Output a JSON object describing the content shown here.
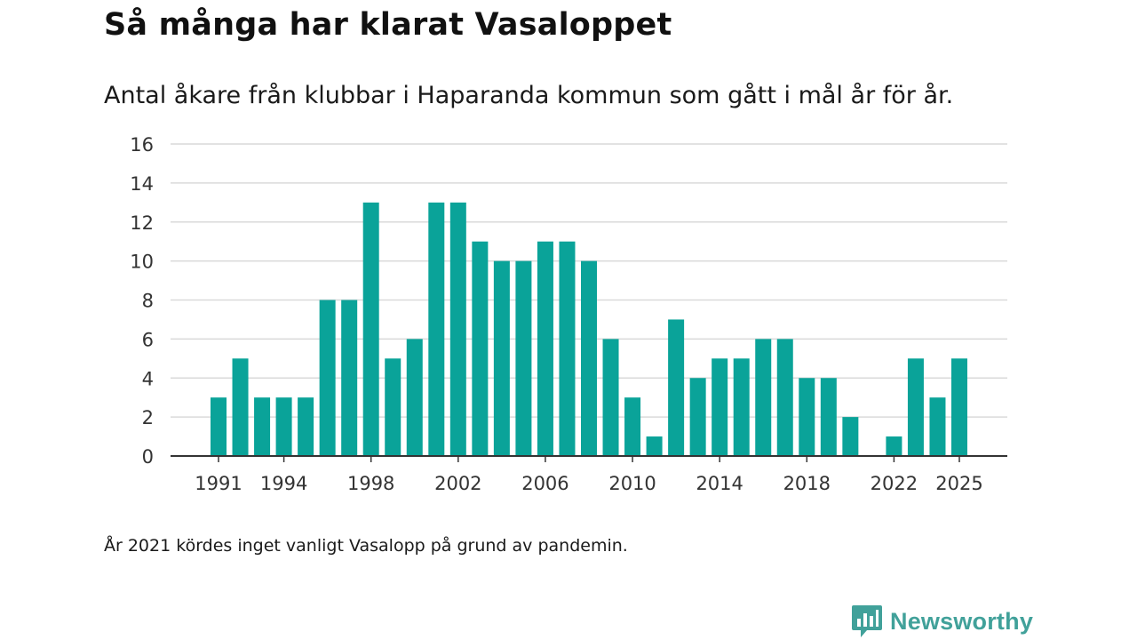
{
  "header": {
    "title": "Så många har klarat Vasaloppet",
    "subtitle": "Antal åkare från klubbar i Haparanda kommun som gått i mål år för år."
  },
  "footer": {
    "note": "År 2021 kördes inget vanligt Vasalopp på grund av pandemin.",
    "brand": "Newsworthy",
    "brand_icon": "newsworthy-logo-icon"
  },
  "colors": {
    "bar": "#0aa399",
    "grid": "#d9d9d9",
    "axis": "#333333",
    "brand": "#41a19a"
  },
  "chart_data": {
    "type": "bar",
    "title": "Så många har klarat Vasaloppet",
    "subtitle": "Antal åkare från klubbar i Haparanda kommun som gått i mål år för år.",
    "xlabel": "",
    "ylabel": "",
    "ylim": [
      0,
      16
    ],
    "yticks": [
      0,
      2,
      4,
      6,
      8,
      10,
      12,
      14,
      16
    ],
    "xticks": [
      1991,
      1994,
      1998,
      2002,
      2006,
      2010,
      2014,
      2018,
      2022,
      2025
    ],
    "grid": true,
    "categories": [
      1991,
      1992,
      1993,
      1994,
      1995,
      1996,
      1997,
      1998,
      1999,
      2000,
      2001,
      2002,
      2003,
      2004,
      2005,
      2006,
      2007,
      2008,
      2009,
      2010,
      2011,
      2012,
      2013,
      2014,
      2015,
      2016,
      2017,
      2018,
      2019,
      2020,
      2021,
      2022,
      2023,
      2024,
      2025
    ],
    "values": [
      3,
      5,
      3,
      3,
      3,
      8,
      8,
      13,
      5,
      6,
      13,
      13,
      11,
      10,
      10,
      11,
      11,
      10,
      6,
      3,
      1,
      7,
      4,
      5,
      5,
      6,
      6,
      4,
      4,
      2,
      0,
      1,
      5,
      3,
      5
    ]
  }
}
